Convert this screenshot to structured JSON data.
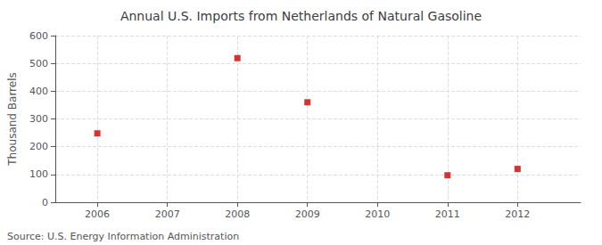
{
  "chart_data": {
    "type": "scatter",
    "title": "Annual U.S. Imports from Netherlands of Natural Gasoline",
    "ylabel": "Thousand Barrels",
    "annotations": [
      "Source: U.S. Energy Information Administration"
    ],
    "x": [
      2006,
      2008,
      2009,
      2011,
      2012
    ],
    "values": [
      248,
      519,
      360,
      97,
      120
    ],
    "color": "#cc0000",
    "marker": "square",
    "xlim": [
      2005.4,
      2012.9
    ],
    "xticks": [
      2006,
      2007,
      2008,
      2009,
      2010,
      2011,
      2012
    ],
    "ylim": [
      0,
      600
    ],
    "yticks": [
      0,
      100,
      200,
      300,
      400,
      500,
      600
    ],
    "grid": true
  }
}
